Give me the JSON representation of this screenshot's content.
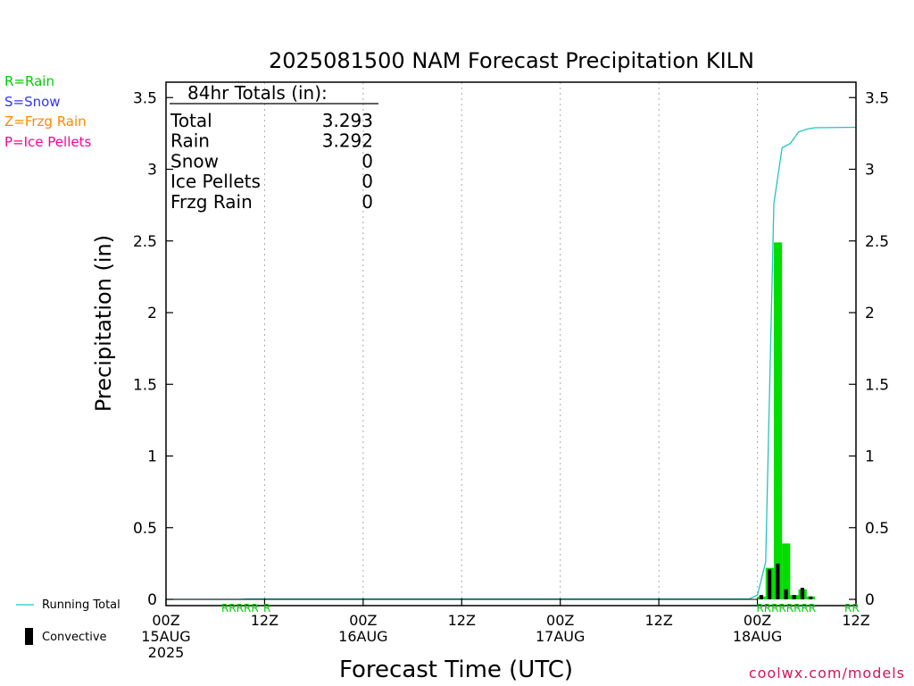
{
  "page": {
    "title": "2025081500 NAM Forecast Precipitation KILN",
    "credit": "coolwx.com/models",
    "type_legend": [
      {
        "label": "R=Rain",
        "color": "#00cc00"
      },
      {
        "label": "S=Snow",
        "color": "#3333ff"
      },
      {
        "label": "Z=Frzg Rain",
        "color": "#ff8800"
      },
      {
        "label": "P=Ice Pellets",
        "color": "#ff0099"
      }
    ],
    "series_legend": {
      "running_total": "Running Total",
      "convective": "Convective"
    },
    "totals_box": {
      "heading": "84hr Totals (in):",
      "rows": [
        {
          "label": "Total",
          "value": "3.293"
        },
        {
          "label": "Rain",
          "value": "3.292"
        },
        {
          "label": "Snow",
          "value": "0"
        },
        {
          "label": "Ice Pellets",
          "value": "0"
        },
        {
          "label": "Frzg Rain",
          "value": "0"
        }
      ]
    }
  },
  "chart_data": {
    "type": "bar",
    "title": "2025081500 NAM Forecast Precipitation KILN",
    "xlabel": "Forecast Time (UTC)",
    "ylabel": "Precipitation (in)",
    "x_unit": "forecast hour",
    "xlim": [
      0,
      84
    ],
    "ylim": [
      0,
      3.6
    ],
    "yticks": [
      0,
      0.5,
      1,
      1.5,
      2,
      2.5,
      3,
      3.5
    ],
    "ytick_labels": [
      "0",
      "0.5",
      "1",
      "1.5",
      "2",
      "2.5",
      "3",
      "3.5"
    ],
    "xticks": [
      {
        "hour": 0,
        "lines": [
          "00Z",
          "15AUG",
          "2025"
        ]
      },
      {
        "hour": 12,
        "lines": [
          "12Z"
        ]
      },
      {
        "hour": 24,
        "lines": [
          "00Z",
          "16AUG"
        ]
      },
      {
        "hour": 36,
        "lines": [
          "12Z"
        ]
      },
      {
        "hour": 48,
        "lines": [
          "00Z",
          "17AUG"
        ]
      },
      {
        "hour": 60,
        "lines": [
          "12Z"
        ]
      },
      {
        "hour": 72,
        "lines": [
          "00Z",
          "18AUG"
        ]
      },
      {
        "hour": 84,
        "lines": [
          "12Z"
        ]
      }
    ],
    "grid": "vertical dotted",
    "bar_width_hours": 1,
    "series": [
      {
        "name": "Rain",
        "color": "#00dd00",
        "points": [
          {
            "x": 72,
            "y": 0.02
          },
          {
            "x": 73,
            "y": 0.22
          },
          {
            "x": 74,
            "y": 2.49
          },
          {
            "x": 75,
            "y": 0.39
          },
          {
            "x": 76,
            "y": 0.03
          },
          {
            "x": 77,
            "y": 0.07
          },
          {
            "x": 78,
            "y": 0.02
          }
        ]
      },
      {
        "name": "Convective",
        "color": "#000000",
        "points": [
          {
            "x": 72,
            "y": 0.03
          },
          {
            "x": 73,
            "y": 0.21
          },
          {
            "x": 74,
            "y": 0.25
          },
          {
            "x": 75,
            "y": 0.07
          },
          {
            "x": 76,
            "y": 0.03
          },
          {
            "x": 77,
            "y": 0.08
          },
          {
            "x": 78,
            "y": 0.02
          }
        ]
      },
      {
        "name": "Running Total",
        "color": "#22c4c4",
        "points": [
          {
            "x": 0,
            "y": 0
          },
          {
            "x": 9,
            "y": 0.0
          },
          {
            "x": 10,
            "y": 0.003
          },
          {
            "x": 71,
            "y": 0.003
          },
          {
            "x": 72,
            "y": 0.03
          },
          {
            "x": 73,
            "y": 0.26
          },
          {
            "x": 74,
            "y": 2.76
          },
          {
            "x": 75,
            "y": 3.15
          },
          {
            "x": 76,
            "y": 3.18
          },
          {
            "x": 77,
            "y": 3.26
          },
          {
            "x": 78,
            "y": 3.28
          },
          {
            "x": 79,
            "y": 3.29
          },
          {
            "x": 84,
            "y": 3.293
          }
        ]
      }
    ],
    "type_markers": {
      "color": "#00cc00",
      "groups": [
        {
          "text": "RRRRR",
          "x": 9
        },
        {
          "text": "R",
          "x": 12.3
        },
        {
          "text": "RRRRRRRR",
          "x": 75.5
        },
        {
          "text": "RR",
          "x": 83.5
        }
      ]
    }
  }
}
